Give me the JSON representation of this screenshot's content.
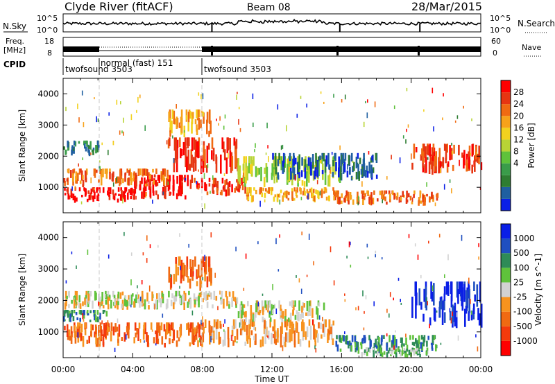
{
  "header": {
    "station": "Clyde River (fitACF)",
    "beam": "Beam 08",
    "date": "28/Mar/2015"
  },
  "noise_panel": {
    "left_label": "N.Sky",
    "left_ticks": [
      "10^5",
      "10^0"
    ],
    "right_ticks": [
      "10^5",
      "10^0"
    ],
    "right_label": "N.Search"
  },
  "freq_panel": {
    "label_line1": "Freq.",
    "label_line2": "[MHz]",
    "left_ticks": [
      "18",
      "8"
    ],
    "right_ticks": [
      "60",
      "0"
    ],
    "right_label": "Nave"
  },
  "cpid_panel": {
    "label": "CPID",
    "segments": [
      {
        "text": "twofsound 3503",
        "start": 0.0,
        "end": 2.0
      },
      {
        "text": "normal (fast) 151",
        "start": 2.0,
        "end": 8.0
      },
      {
        "text": "twofsound 3503",
        "start": 8.0,
        "end": 24.0
      }
    ]
  },
  "chart_data": [
    {
      "type": "heatmap",
      "parameter": "Power",
      "ylabel": "Slant Range [km]",
      "ylim": [
        180,
        4500
      ],
      "yticks": [
        "4000",
        "3000",
        "2000",
        "1000"
      ],
      "colorbar_label": "Power [dB]",
      "colorbar_ticks": [
        "28",
        "24",
        "20",
        "16",
        "12",
        "8",
        "4"
      ],
      "colors": [
        "#0a1fe6",
        "#1f5fa0",
        "#2e7d32",
        "#3a9c4a",
        "#5fc23b",
        "#b8d435",
        "#f2d21e",
        "#f7a21a",
        "#f06a12",
        "#e63512",
        "#ff0000"
      ],
      "bands": [
        {
          "x0": 0.0,
          "x1": 4.0,
          "y0": 500,
          "y1": 1000,
          "level": 10
        },
        {
          "x0": 4.0,
          "x1": 7.5,
          "y0": 600,
          "y1": 1400,
          "level": 10
        },
        {
          "x0": 7.5,
          "x1": 10.5,
          "y0": 700,
          "y1": 1300,
          "level": 9
        },
        {
          "x0": 10.5,
          "x1": 15.5,
          "y0": 500,
          "y1": 1000,
          "level": 7
        },
        {
          "x0": 15.5,
          "x1": 21.5,
          "y0": 400,
          "y1": 900,
          "level": 8
        },
        {
          "x0": 0.0,
          "x1": 6.0,
          "y0": 1000,
          "y1": 1600,
          "level": 8
        },
        {
          "x0": 6.0,
          "x1": 10.0,
          "y0": 1400,
          "y1": 2600,
          "level": 9
        },
        {
          "x0": 10.0,
          "x1": 16.0,
          "y0": 1000,
          "y1": 2000,
          "level": 5
        },
        {
          "x0": 20.0,
          "x1": 24.0,
          "y0": 1400,
          "y1": 2400,
          "level": 9
        },
        {
          "x0": 0.0,
          "x1": 2.0,
          "y0": 2000,
          "y1": 2500,
          "level": 2
        },
        {
          "x0": 12.0,
          "x1": 18.0,
          "y0": 1200,
          "y1": 2100,
          "level": 1
        },
        {
          "x0": 6.0,
          "x1": 8.5,
          "y0": 2600,
          "y1": 3500,
          "level": 7
        }
      ]
    },
    {
      "type": "heatmap",
      "parameter": "Velocity",
      "ylabel": "Slant Range [km]",
      "ylim": [
        180,
        4500
      ],
      "yticks": [
        "4000",
        "3000",
        "2000",
        "1000"
      ],
      "colorbar_label": "Velocity [m s^-1]",
      "colorbar_ticks": [
        "1000",
        "500",
        "100",
        "25",
        "-25",
        "-100",
        "-500",
        "-1000"
      ],
      "colors": [
        "#ff0000",
        "#f43a0c",
        "#f06a12",
        "#f7931e",
        "#d2d2d2",
        "#5fc23b",
        "#2e8b57",
        "#1f4fc0",
        "#0a1fe6"
      ],
      "bands": [
        {
          "x0": 0.0,
          "x1": 8.0,
          "y0": 500,
          "y1": 1300,
          "level": 2
        },
        {
          "x0": 8.0,
          "x1": 15.5,
          "y0": 500,
          "y1": 1400,
          "level": 3
        },
        {
          "x0": 0.0,
          "x1": 10.0,
          "y0": 1700,
          "y1": 2300,
          "level": 4
        },
        {
          "x0": 10.0,
          "x1": 15.0,
          "y0": 1300,
          "y1": 2000,
          "level": 4
        },
        {
          "x0": 15.5,
          "x1": 21.5,
          "y0": 300,
          "y1": 900,
          "level": 6
        },
        {
          "x0": 17.0,
          "x1": 21.0,
          "y0": 180,
          "y1": 500,
          "level": 5
        },
        {
          "x0": 20.0,
          "x1": 24.0,
          "y0": 1100,
          "y1": 2600,
          "level": 8
        },
        {
          "x0": 6.0,
          "x1": 8.5,
          "y0": 2300,
          "y1": 3400,
          "level": 2
        },
        {
          "x0": 0.0,
          "x1": 2.5,
          "y0": 1300,
          "y1": 1700,
          "level": 6
        }
      ]
    }
  ],
  "time_axis": {
    "ticks": [
      "00:00",
      "04:00",
      "08:00",
      "12:00",
      "16:00",
      "20:00",
      "00:00"
    ],
    "label": "Time UT"
  }
}
